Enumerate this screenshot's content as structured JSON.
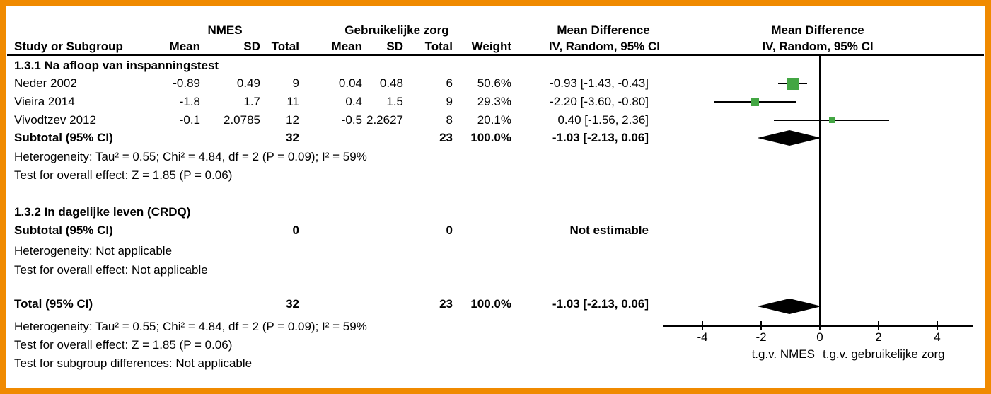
{
  "header": {
    "col_study": "Study or Subgroup",
    "group1": "NMES",
    "group2": "Gebruikelijke zorg",
    "col_mean": "Mean",
    "col_sd": "SD",
    "col_total": "Total",
    "col_weight": "Weight",
    "md_title": "Mean Difference",
    "md_sub": "IV, Random, 95% CI"
  },
  "section1": {
    "title": "1.3.1 Na afloop van inspanningstest",
    "rows": [
      {
        "study": "Neder 2002",
        "m1": "-0.89",
        "sd1": "0.49",
        "t1": "9",
        "m2": "0.04",
        "sd2": "0.48",
        "t2": "6",
        "w": "50.6%",
        "ci": "-0.93 [-1.43, -0.43]"
      },
      {
        "study": "Vieira 2014",
        "m1": "-1.8",
        "sd1": "1.7",
        "t1": "11",
        "m2": "0.4",
        "sd2": "1.5",
        "t2": "9",
        "w": "29.3%",
        "ci": "-2.20 [-3.60, -0.80]"
      },
      {
        "study": "Vivodtzev 2012",
        "m1": "-0.1",
        "sd1": "2.0785",
        "t1": "12",
        "m2": "-0.5",
        "sd2": "2.2627",
        "t2": "8",
        "w": "20.1%",
        "ci": "0.40 [-1.56, 2.36]"
      }
    ],
    "subtotal": {
      "label": "Subtotal (95% CI)",
      "t1": "32",
      "t2": "23",
      "w": "100.0%",
      "ci": "-1.03 [-2.13, 0.06]"
    },
    "heterogeneity": "Heterogeneity: Tau² = 0.55; Chi² = 4.84, df = 2 (P = 0.09); I² = 59%",
    "overall": "Test for overall effect: Z = 1.85 (P = 0.06)"
  },
  "section2": {
    "title": "1.3.2 In dagelijke leven (CRDQ)",
    "subtotal": {
      "label": "Subtotal (95% CI)",
      "t1": "0",
      "t2": "0",
      "ci": "Not estimable"
    },
    "heterogeneity": "Heterogeneity: Not applicable",
    "overall": "Test for overall effect: Not applicable"
  },
  "totals": {
    "label": "Total (95% CI)",
    "t1": "32",
    "t2": "23",
    "w": "100.0%",
    "ci": "-1.03 [-2.13, 0.06]",
    "heterogeneity": "Heterogeneity: Tau² = 0.55; Chi² = 4.84, df = 2 (P = 0.09); I² = 59%",
    "overall": "Test for overall effect: Z = 1.85 (P = 0.06)",
    "subgroup_diff": "Test for subgroup differences: Not applicable"
  },
  "colors": {
    "frame": "#F08A00",
    "marker": "#43A643",
    "line": "#000000"
  },
  "chart_data": {
    "type": "forest",
    "title": "Mean Difference, IV, Random, 95% CI",
    "xlabel_left": "t.g.v. NMES",
    "xlabel_right": "t.g.v. gebruikelijke zorg",
    "x_ticks": [
      -4,
      -2,
      0,
      2,
      4
    ],
    "xlim": [
      -5.3,
      5.2
    ],
    "zero_line": 0,
    "studies": [
      {
        "name": "Neder 2002",
        "md": -0.93,
        "ci": [
          -1.43,
          -0.43
        ],
        "weight": 50.6
      },
      {
        "name": "Vieira 2014",
        "md": -2.2,
        "ci": [
          -3.6,
          -0.8
        ],
        "weight": 29.3
      },
      {
        "name": "Vivodtzev 2012",
        "md": 0.4,
        "ci": [
          -1.56,
          2.36
        ],
        "weight": 20.1
      }
    ],
    "subtotal": {
      "name": "Subtotal 1.3.1",
      "md": -1.03,
      "ci": [
        -2.13,
        0.06
      ]
    },
    "total": {
      "name": "Total",
      "md": -1.03,
      "ci": [
        -2.13,
        0.06
      ]
    }
  }
}
